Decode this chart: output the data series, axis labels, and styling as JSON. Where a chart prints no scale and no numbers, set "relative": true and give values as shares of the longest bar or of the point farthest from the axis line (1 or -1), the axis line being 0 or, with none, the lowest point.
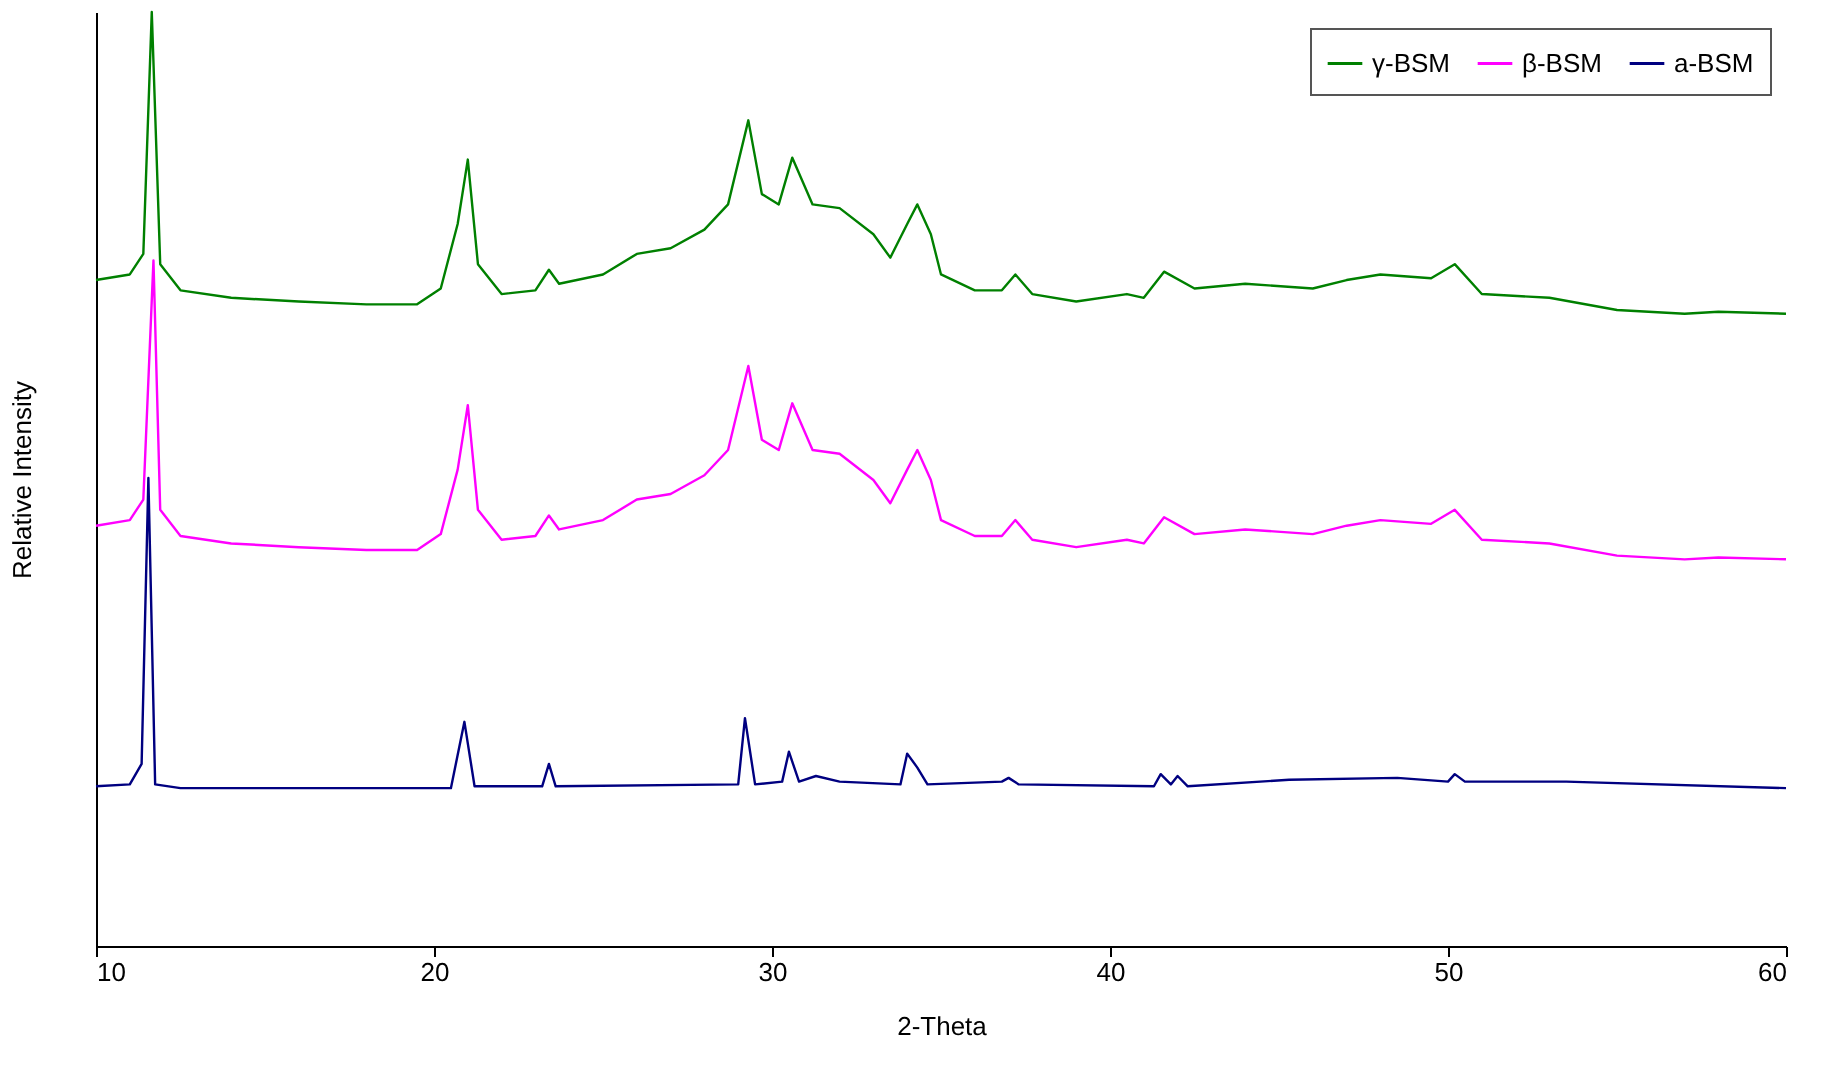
{
  "chart_data": {
    "type": "line",
    "relative": true,
    "xlabel": "2-Theta",
    "ylabel": "Relative Intensity",
    "xlim": [
      10,
      60
    ],
    "xticks": [
      10,
      20,
      30,
      40,
      50,
      60
    ],
    "legend": "top right",
    "grid": false,
    "line_style": "solid",
    "marker": "none",
    "series": [
      {
        "name": "γ-BSM",
        "color": "#008000",
        "x": [
          10,
          11,
          11.4,
          11.65,
          11.9,
          12.5,
          14,
          16,
          18,
          19.5,
          20.2,
          20.7,
          21,
          21.3,
          22,
          23,
          23.4,
          23.7,
          25,
          26,
          27,
          28,
          28.7,
          29.3,
          29.7,
          30.2,
          30.6,
          31.2,
          32,
          33,
          33.5,
          34,
          34.3,
          34.7,
          35,
          36,
          36.8,
          37.2,
          37.7,
          39,
          40.5,
          41,
          41.6,
          42.5,
          44,
          46,
          47,
          48,
          49.5,
          50.2,
          51,
          53,
          55,
          57,
          58,
          60
        ],
        "values": [
          0.713,
          0.719,
          0.741,
          1.0,
          0.73,
          0.702,
          0.694,
          0.69,
          0.687,
          0.687,
          0.704,
          0.773,
          0.842,
          0.73,
          0.698,
          0.702,
          0.724,
          0.709,
          0.719,
          0.741,
          0.747,
          0.767,
          0.794,
          0.884,
          0.805,
          0.794,
          0.844,
          0.794,
          0.79,
          0.762,
          0.737,
          0.773,
          0.794,
          0.762,
          0.719,
          0.702,
          0.702,
          0.719,
          0.698,
          0.69,
          0.698,
          0.694,
          0.722,
          0.704,
          0.709,
          0.704,
          0.713,
          0.719,
          0.715,
          0.73,
          0.698,
          0.694,
          0.681,
          0.677,
          0.679,
          0.677
        ]
      },
      {
        "name": "β-BSM",
        "color": "#ff00ff",
        "x": [
          10,
          11,
          11.4,
          11.7,
          11.9,
          12.5,
          14,
          16,
          18,
          19.5,
          20.2,
          20.7,
          21,
          21.3,
          22,
          23,
          23.4,
          23.7,
          25,
          26,
          27,
          28,
          28.7,
          29.3,
          29.7,
          30.2,
          30.6,
          31.2,
          32,
          33,
          33.5,
          34,
          34.3,
          34.7,
          35,
          36,
          36.8,
          37.2,
          37.7,
          39,
          40.5,
          41,
          41.6,
          42.5,
          44,
          46,
          47,
          48,
          49.5,
          50.2,
          51,
          53,
          55,
          57,
          58,
          60
        ],
        "values": [
          0.45,
          0.456,
          0.478,
          0.734,
          0.467,
          0.439,
          0.431,
          0.427,
          0.424,
          0.424,
          0.441,
          0.51,
          0.579,
          0.467,
          0.435,
          0.439,
          0.461,
          0.446,
          0.456,
          0.478,
          0.484,
          0.504,
          0.531,
          0.621,
          0.542,
          0.531,
          0.581,
          0.531,
          0.527,
          0.499,
          0.474,
          0.51,
          0.531,
          0.499,
          0.456,
          0.439,
          0.439,
          0.456,
          0.435,
          0.427,
          0.435,
          0.431,
          0.459,
          0.441,
          0.446,
          0.441,
          0.45,
          0.456,
          0.452,
          0.467,
          0.435,
          0.431,
          0.418,
          0.414,
          0.416,
          0.414
        ]
      },
      {
        "name": "a-BSM",
        "color": "#000080",
        "x": [
          10,
          11,
          11.35,
          11.55,
          11.75,
          12.5,
          20.5,
          20.9,
          21.2,
          23.2,
          23.4,
          23.6,
          29,
          29.2,
          29.5,
          30.3,
          30.5,
          30.8,
          31.3,
          32,
          33.8,
          34,
          34.3,
          34.6,
          36.8,
          37,
          37.3,
          41.3,
          41.5,
          41.8,
          42,
          42.3,
          45.3,
          48.5,
          50,
          50.2,
          50.5,
          53.5,
          60
        ],
        "values": [
          0.171,
          0.173,
          0.195,
          0.501,
          0.173,
          0.169,
          0.169,
          0.24,
          0.171,
          0.171,
          0.195,
          0.171,
          0.173,
          0.244,
          0.173,
          0.176,
          0.208,
          0.176,
          0.182,
          0.176,
          0.173,
          0.206,
          0.191,
          0.173,
          0.176,
          0.18,
          0.173,
          0.171,
          0.184,
          0.173,
          0.182,
          0.171,
          0.178,
          0.18,
          0.176,
          0.184,
          0.176,
          0.176,
          0.169
        ]
      }
    ]
  }
}
